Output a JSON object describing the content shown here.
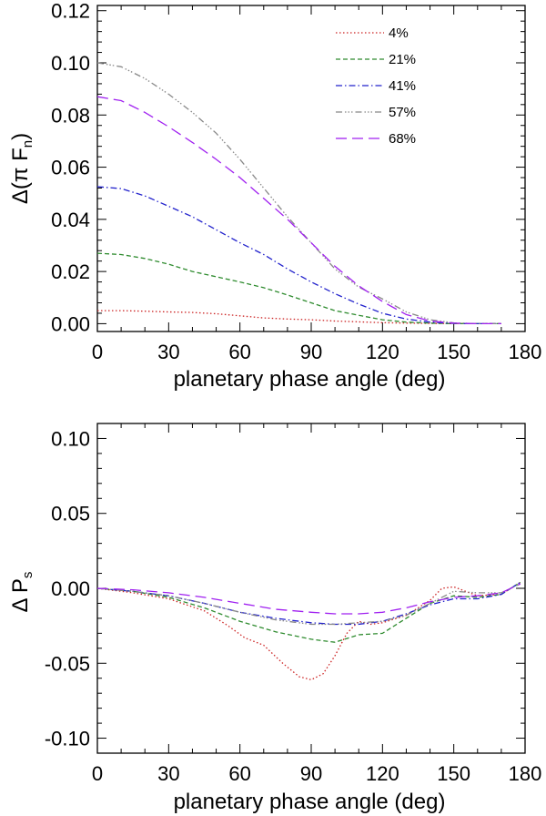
{
  "chart_data": [
    {
      "type": "line",
      "title": "",
      "xlabel": "planetary phase angle (deg)",
      "ylabel": "Δ(π F",
      "ylabel_sub": "n",
      "ylabel_close": ")",
      "xlim": [
        0,
        180
      ],
      "ylim": [
        -0.003,
        0.122
      ],
      "xticks": [
        0,
        30,
        60,
        90,
        120,
        150,
        180
      ],
      "xtick_labels": [
        "0",
        "30",
        "60",
        "90",
        "120",
        "150",
        "180"
      ],
      "yticks": [
        0.0,
        0.02,
        0.04,
        0.06,
        0.08,
        0.1,
        0.12
      ],
      "ytick_labels": [
        "0.00",
        "0.02",
        "0.04",
        "0.06",
        "0.08",
        "0.10",
        "0.12"
      ],
      "legend_position": "top-right",
      "series": [
        {
          "name": "4%",
          "color": "#cc2222",
          "dash": "1.5,2.5",
          "x": [
            0,
            10,
            20,
            30,
            40,
            50,
            60,
            70,
            80,
            90,
            100,
            110,
            120,
            130,
            140,
            150,
            160,
            170
          ],
          "y": [
            0.005,
            0.005,
            0.0048,
            0.0045,
            0.0043,
            0.0038,
            0.003,
            0.0022,
            0.0018,
            0.0015,
            0.001,
            0.0007,
            0.0004,
            0.0002,
            0.0001,
            0.0,
            0.0,
            0.0
          ]
        },
        {
          "name": "21%",
          "color": "#2e8b2e",
          "dash": "5,3",
          "x": [
            0,
            10,
            20,
            30,
            40,
            50,
            60,
            70,
            80,
            90,
            100,
            110,
            120,
            130,
            140,
            150,
            160,
            170
          ],
          "y": [
            0.027,
            0.0265,
            0.025,
            0.0228,
            0.02,
            0.018,
            0.016,
            0.0138,
            0.011,
            0.008,
            0.005,
            0.0032,
            0.0015,
            0.0006,
            0.0002,
            0.0,
            0.0,
            0.0
          ]
        },
        {
          "name": "41%",
          "color": "#2222cc",
          "dash": "7,3,1.5,3",
          "x": [
            0,
            10,
            20,
            30,
            40,
            50,
            60,
            70,
            80,
            90,
            100,
            110,
            120,
            130,
            140,
            150,
            160,
            170
          ],
          "y": [
            0.0525,
            0.0518,
            0.049,
            0.045,
            0.041,
            0.036,
            0.031,
            0.0265,
            0.021,
            0.016,
            0.0115,
            0.0075,
            0.004,
            0.0018,
            0.0006,
            0.0001,
            0.0,
            0.0
          ]
        },
        {
          "name": "57%",
          "color": "#888888",
          "dash": "7,3,1.5,2,1.5,2,1.5,3",
          "x": [
            0,
            10,
            20,
            30,
            40,
            50,
            60,
            70,
            80,
            90,
            100,
            110,
            120,
            130,
            140,
            150,
            160,
            170
          ],
          "y": [
            0.1,
            0.0985,
            0.094,
            0.088,
            0.081,
            0.073,
            0.063,
            0.052,
            0.041,
            0.031,
            0.021,
            0.014,
            0.0095,
            0.0045,
            0.0015,
            0.0003,
            0.0,
            0.0
          ]
        },
        {
          "name": "68%",
          "color": "#a020f0",
          "dash": "12,6",
          "x": [
            0,
            10,
            20,
            30,
            40,
            50,
            60,
            70,
            80,
            90,
            100,
            110,
            120,
            130,
            140,
            150,
            160,
            170
          ],
          "y": [
            0.087,
            0.0855,
            0.081,
            0.0755,
            0.0695,
            0.063,
            0.056,
            0.048,
            0.04,
            0.031,
            0.022,
            0.0145,
            0.0085,
            0.0035,
            0.001,
            0.0002,
            0.0,
            0.0
          ]
        }
      ]
    },
    {
      "type": "line",
      "title": "",
      "xlabel": "planetary phase angle (deg)",
      "ylabel": "Δ P",
      "ylabel_sub": "s",
      "ylabel_close": "",
      "xlim": [
        0,
        180
      ],
      "ylim": [
        -0.11,
        0.11
      ],
      "xticks": [
        0,
        30,
        60,
        90,
        120,
        150,
        180
      ],
      "xtick_labels": [
        "0",
        "30",
        "60",
        "90",
        "120",
        "150",
        "180"
      ],
      "yticks": [
        -0.1,
        -0.05,
        0.0,
        0.05,
        0.1
      ],
      "ytick_labels": [
        "-0.10",
        "-0.05",
        "0.00",
        "0.05",
        "0.10"
      ],
      "legend_position": "none",
      "series": [
        {
          "name": "4%",
          "color": "#cc2222",
          "dash": "1.5,2.5",
          "x": [
            0,
            15,
            30,
            45,
            55,
            62,
            70,
            78,
            85,
            90,
            95,
            100,
            105,
            110,
            115,
            120,
            130,
            140,
            145,
            150,
            155,
            160,
            170,
            178
          ],
          "y": [
            0.0,
            -0.003,
            -0.007,
            -0.015,
            -0.025,
            -0.033,
            -0.038,
            -0.05,
            -0.059,
            -0.061,
            -0.057,
            -0.045,
            -0.03,
            -0.022,
            -0.024,
            -0.023,
            -0.018,
            -0.008,
            0.0,
            0.001,
            -0.002,
            -0.005,
            -0.004,
            0.004
          ]
        },
        {
          "name": "21%",
          "color": "#2e8b2e",
          "dash": "5,3",
          "x": [
            0,
            15,
            30,
            45,
            60,
            75,
            90,
            100,
            110,
            120,
            130,
            140,
            150,
            160,
            170,
            178
          ],
          "y": [
            0.0,
            -0.002,
            -0.006,
            -0.013,
            -0.022,
            -0.029,
            -0.034,
            -0.036,
            -0.031,
            -0.03,
            -0.02,
            -0.01,
            -0.005,
            -0.006,
            -0.004,
            0.004
          ]
        },
        {
          "name": "41%",
          "color": "#2222cc",
          "dash": "7,3,1.5,3",
          "x": [
            0,
            15,
            30,
            45,
            60,
            75,
            90,
            100,
            110,
            120,
            130,
            140,
            150,
            160,
            170,
            178
          ],
          "y": [
            0.0,
            -0.002,
            -0.005,
            -0.01,
            -0.016,
            -0.02,
            -0.023,
            -0.024,
            -0.024,
            -0.022,
            -0.017,
            -0.011,
            -0.007,
            -0.007,
            -0.004,
            0.004
          ]
        },
        {
          "name": "57%",
          "color": "#888888",
          "dash": "7,3,1.5,2,1.5,2,1.5,3",
          "x": [
            0,
            15,
            30,
            45,
            60,
            75,
            90,
            100,
            110,
            120,
            130,
            140,
            150,
            160,
            170,
            178
          ],
          "y": [
            0.0,
            -0.002,
            -0.005,
            -0.01,
            -0.016,
            -0.021,
            -0.024,
            -0.024,
            -0.023,
            -0.022,
            -0.018,
            -0.01,
            -0.002,
            -0.003,
            -0.003,
            0.003
          ]
        },
        {
          "name": "68%",
          "color": "#a020f0",
          "dash": "12,6",
          "x": [
            0,
            15,
            30,
            45,
            60,
            75,
            90,
            100,
            110,
            120,
            130,
            140,
            150,
            160,
            170,
            178
          ],
          "y": [
            0.0,
            -0.001,
            -0.003,
            -0.006,
            -0.01,
            -0.014,
            -0.016,
            -0.017,
            -0.017,
            -0.016,
            -0.013,
            -0.009,
            -0.006,
            -0.005,
            -0.003,
            0.003
          ]
        }
      ]
    }
  ]
}
